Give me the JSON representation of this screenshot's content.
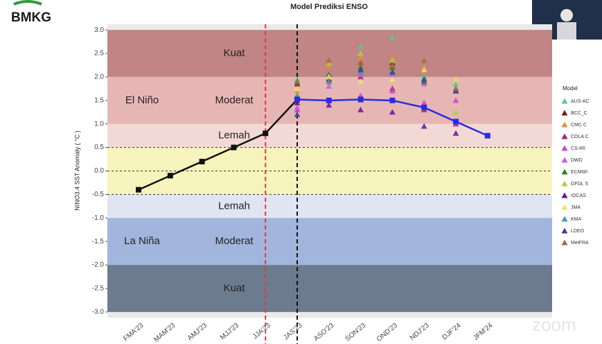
{
  "logo": "BMKG",
  "watermark": "zoom",
  "chart_data": {
    "type": "line",
    "title": "Model Prediksi ENSO",
    "y_label": "NINO3.4 SST Anomaly ( °C )",
    "categories": [
      "FMA'23",
      "MAM'23",
      "AMJ'23",
      "MJJ'23",
      "JJA'23",
      "JAS'23",
      "ASO'23",
      "SON'23",
      "OND'23",
      "NDJ'23",
      "DJF'24",
      "JFM'24"
    ],
    "ylim": [
      -3.12,
      3.12
    ],
    "yticks": [
      {
        "value": -3,
        "label": "-3.0"
      },
      {
        "value": -2.5,
        "label": "-2.5"
      },
      {
        "value": -2,
        "label": "-2.0"
      },
      {
        "value": -1.5,
        "label": "-1.5"
      },
      {
        "value": -1,
        "label": "-1.0"
      },
      {
        "value": -0.5,
        "label": "-0.5"
      },
      {
        "value": 0,
        "label": "0.0"
      },
      {
        "value": 0.5,
        "label": "0.5"
      },
      {
        "value": 1,
        "label": "1.0"
      },
      {
        "value": 1.5,
        "label": "1.5"
      },
      {
        "value": 2,
        "label": "2.0"
      },
      {
        "value": 2.5,
        "label": "2.5"
      },
      {
        "value": 3,
        "label": "3.0"
      }
    ],
    "bands": [
      {
        "from": 2,
        "to": 3,
        "color": "#c08584",
        "label": "Kuat"
      },
      {
        "from": 1,
        "to": 2,
        "color": "#e6b6b5",
        "label": "Moderat"
      },
      {
        "from": 0.5,
        "to": 1,
        "color": "#f3d9d6",
        "label": "Lemah"
      },
      {
        "from": -0.5,
        "to": 0.5,
        "color": "#f7f3bd"
      },
      {
        "from": -1,
        "to": -0.5,
        "color": "#dfe5f3",
        "label": "Lemah"
      },
      {
        "from": -2,
        "to": -1,
        "color": "#a2b5dc",
        "label": "Moderat"
      },
      {
        "from": -3,
        "to": -2,
        "color": "#6d7b8f",
        "label": "Kuat"
      }
    ],
    "groups": [
      {
        "label": "El Niño",
        "band": 1
      },
      {
        "label": "La Niña",
        "band": 5
      }
    ],
    "hlines": [
      0.5,
      0,
      -0.5
    ],
    "vlines": [
      {
        "at": 4,
        "color": "#e03a3a"
      },
      {
        "at": 5,
        "color": "#111111"
      }
    ],
    "observed": {
      "color": "#111111",
      "values": [
        -0.4,
        -0.1,
        0.2,
        0.5,
        0.8,
        1.52,
        null,
        null,
        null,
        null,
        null,
        null
      ]
    },
    "mean": {
      "color": "#2b2be0",
      "values": [
        null,
        null,
        null,
        null,
        null,
        1.52,
        1.5,
        1.52,
        1.5,
        1.35,
        1.05,
        0.75
      ]
    },
    "legend_title": "Model",
    "series": [
      {
        "name": "AUS-AC",
        "color": "#4fcf8f",
        "values": [
          null,
          null,
          null,
          null,
          null,
          1.95,
          1.95,
          2.65,
          2.85,
          2.0,
          1.85,
          null
        ]
      },
      {
        "name": "BCC_C",
        "color": "#7a1a1a",
        "values": [
          null,
          null,
          null,
          null,
          null,
          1.85,
          1.95,
          2.3,
          2.3,
          1.9,
          1.7,
          null
        ]
      },
      {
        "name": "CMC C",
        "color": "#e8902a",
        "values": [
          null,
          null,
          null,
          null,
          null,
          1.7,
          2.25,
          2.4,
          2.4,
          2.2,
          1.95,
          null
        ]
      },
      {
        "name": "COLA C",
        "color": "#a0207a",
        "values": [
          null,
          null,
          null,
          null,
          null,
          1.6,
          1.9,
          2.0,
          1.75,
          1.3,
          1.0,
          null
        ]
      },
      {
        "name": "CS-IRI",
        "color": "#d040d0",
        "values": [
          null,
          null,
          null,
          null,
          null,
          1.3,
          1.5,
          1.6,
          1.7,
          1.45,
          1.5,
          null
        ]
      },
      {
        "name": "DWD",
        "color": "#c060e0",
        "values": [
          null,
          null,
          null,
          null,
          null,
          1.35,
          1.8,
          2.05,
          2.05,
          1.85,
          1.7,
          null
        ]
      },
      {
        "name": "ECMWI",
        "color": "#3a7a2a",
        "values": [
          null,
          null,
          null,
          null,
          null,
          1.9,
          2.05,
          2.2,
          2.2,
          1.9,
          1.75,
          null
        ]
      },
      {
        "name": "GFDL S",
        "color": "#a8d040",
        "values": [
          null,
          null,
          null,
          null,
          null,
          1.6,
          2.3,
          2.5,
          2.35,
          1.95,
          1.25,
          null
        ]
      },
      {
        "name": "IOCAS",
        "color": "#6a10a0",
        "values": [
          null,
          null,
          null,
          null,
          null,
          1.45,
          1.4,
          1.3,
          1.25,
          0.95,
          0.8,
          null
        ]
      },
      {
        "name": "JMA",
        "color": "#f0e070",
        "values": [
          null,
          null,
          null,
          null,
          null,
          1.75,
          2.0,
          1.9,
          1.95,
          2.15,
          1.95,
          null
        ]
      },
      {
        "name": "KMA",
        "color": "#40a0a0",
        "values": [
          null,
          null,
          null,
          null,
          null,
          1.6,
          1.9,
          2.1,
          2.1,
          1.95,
          1.75,
          null
        ]
      },
      {
        "name": "LDEO",
        "color": "#3040a0",
        "values": [
          null,
          null,
          null,
          null,
          null,
          1.2,
          1.5,
          2.15,
          2.1,
          1.95,
          1.7,
          null
        ]
      },
      {
        "name": "MetFRA",
        "color": "#a07040",
        "values": [
          null,
          null,
          null,
          null,
          null,
          1.9,
          2.35,
          2.3,
          2.25,
          2.35,
          1.75,
          null
        ]
      }
    ]
  }
}
